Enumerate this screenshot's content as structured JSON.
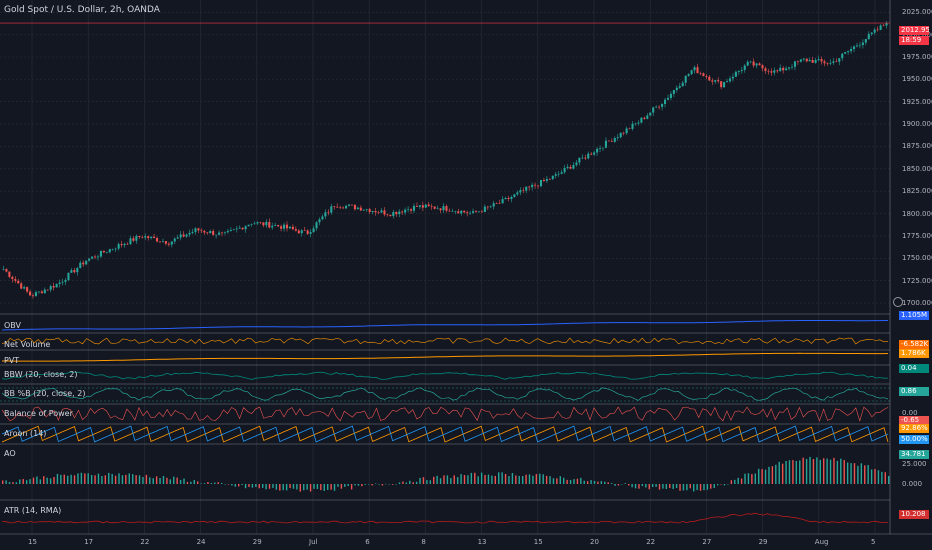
{
  "symbol": {
    "title": "Gold Spot / U.S. Dollar, 2h, OANDA"
  },
  "price_axis": {
    "ticks": [
      "2025.000",
      "2000.000",
      "1975.000",
      "1950.000",
      "1925.000",
      "1900.000",
      "1875.000",
      "1850.000",
      "1825.000",
      "1800.000",
      "1775.000",
      "1750.000",
      "1725.000",
      "1700.000"
    ],
    "last_price_label": "2012.954",
    "countdown_label": "18:59"
  },
  "time_axis": {
    "ticks": [
      "15",
      "17",
      "22",
      "24",
      "29",
      "Jul",
      "6",
      "8",
      "13",
      "15",
      "20",
      "22",
      "27",
      "29",
      "Aug",
      "5"
    ]
  },
  "colors": {
    "background": "#131722",
    "up": "#26a69a",
    "down": "#ef5350",
    "grid": "#2a2e39",
    "obv": "#2962ff",
    "net_volume": "#ff9800",
    "pvt": "#ff9800",
    "bbw": "#00897b",
    "bbp": "#26a69a",
    "bop": "#ef5350",
    "aroon_up": "#ff9800",
    "aroon_down": "#2196f3",
    "atr": "#b71c1c"
  },
  "chart_data": [
    {
      "type": "candlestick",
      "title": "Gold Spot / U.S. Dollar, 2h, OANDA",
      "x": [
        "15",
        "17",
        "22",
        "24",
        "29",
        "Jul",
        "6",
        "8",
        "13",
        "15",
        "20",
        "22",
        "27",
        "29",
        "Aug",
        "5"
      ],
      "close_path": [
        1738,
        1708,
        1722,
        1748,
        1762,
        1775,
        1768,
        1782,
        1776,
        1790,
        1786,
        1778,
        1810,
        1806,
        1800,
        1808,
        1806,
        1800,
        1812,
        1828,
        1842,
        1862,
        1882,
        1902,
        1928,
        1962,
        1944,
        1968,
        1958,
        1972,
        1968,
        1990,
        2012.954
      ],
      "ylim": [
        1690,
        2032
      ],
      "last_price": 2012.954,
      "last_price_label": "2012.954",
      "countdown": "18:59"
    },
    {
      "type": "line",
      "name": "OBV",
      "label": "OBV",
      "value_label": "1.105M",
      "badge_color": "#2962ff"
    },
    {
      "type": "line",
      "name": "Net Volume",
      "label": "Net Volume",
      "value_label": "-6.582K",
      "badge_color": "#ff6d00"
    },
    {
      "type": "line",
      "name": "PVT",
      "label": "PVT",
      "value_label": "1.786K",
      "badge_color": "#ff9800"
    },
    {
      "type": "line",
      "name": "BBW (20, close, 2)",
      "label": "BBW (20, close, 2)",
      "value_label": "0.04",
      "badge_color": "#00897b"
    },
    {
      "type": "line",
      "name": "BB %B (20, close, 2)",
      "label": "BB %B (20, close, 2)",
      "value_label": "0.86",
      "badge_color": "#26a69a"
    },
    {
      "type": "line",
      "name": "Balance of Power",
      "label": "Balance of Power",
      "value_label": "-0.65",
      "badge_color": "#ef5350",
      "ticks": [
        "0.00"
      ]
    },
    {
      "type": "line",
      "name": "Aroon (14)",
      "label": "Aroon (14)",
      "series": [
        {
          "name": "Aroon Up",
          "value_label": "92.86%",
          "badge_color": "#ff9800"
        },
        {
          "name": "Aroon Down",
          "value_label": "50.00%",
          "badge_color": "#2196f3"
        }
      ]
    },
    {
      "type": "bar",
      "name": "AO",
      "label": "AO",
      "value_label": "34.781",
      "badge_color": "#26a69a",
      "ticks": [
        "25.000",
        "0.000"
      ]
    },
    {
      "type": "line",
      "name": "ATR (14, RMA)",
      "label": "ATR (14, RMA)",
      "value_label": "10.208",
      "badge_color": "#d32f2f"
    }
  ]
}
